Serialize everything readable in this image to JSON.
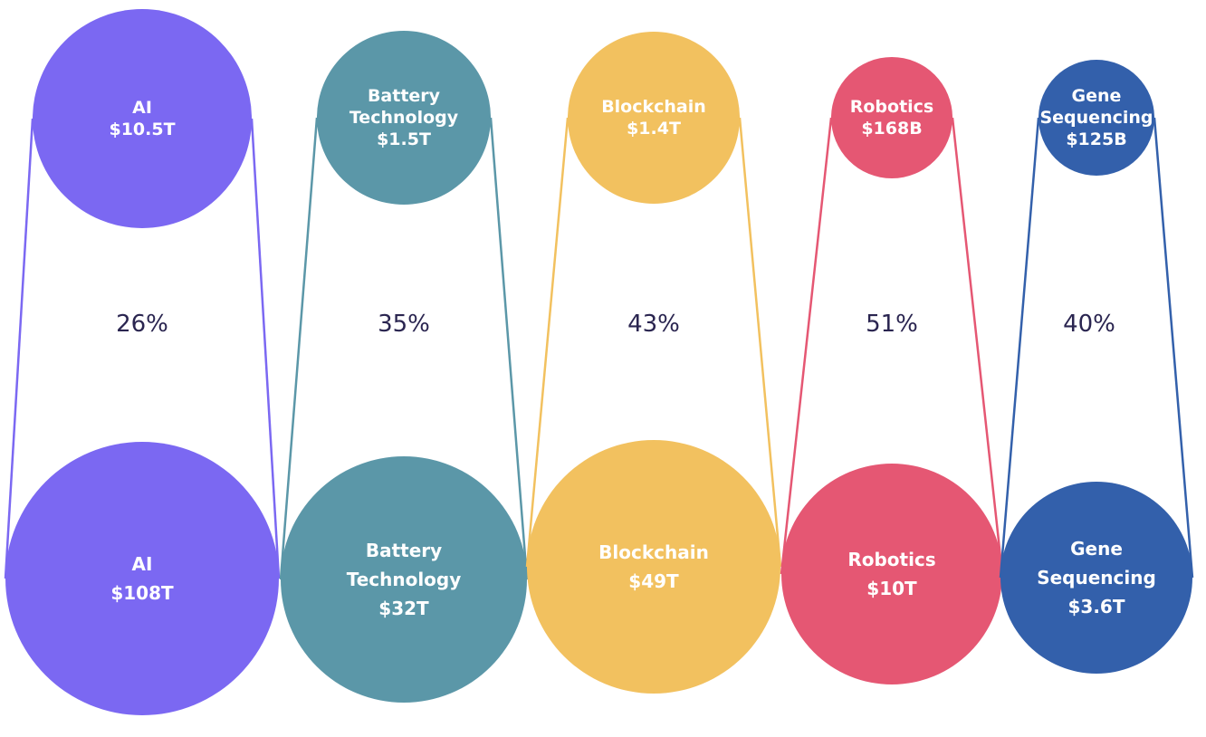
{
  "chart_data": {
    "type": "bubble-comparison",
    "title": "",
    "series": [
      {
        "name": "AI",
        "color": "#7b68f2",
        "small": {
          "label_lines": [
            "AI",
            "$10.5T"
          ],
          "value_usd": 10500000000000.0
        },
        "large": {
          "label_lines": [
            "AI",
            "$108T"
          ],
          "value_usd": 108000000000000.0
        },
        "growth": "26%"
      },
      {
        "name": "Battery Technology",
        "color": "#5b97a8",
        "small": {
          "label_lines": [
            "Battery",
            "Technology",
            "$1.5T"
          ],
          "value_usd": 1500000000000.0
        },
        "large": {
          "label_lines": [
            "Battery",
            "Technology",
            "$32T"
          ],
          "value_usd": 32000000000000.0
        },
        "growth": "35%"
      },
      {
        "name": "Blockchain",
        "color": "#f2c15f",
        "small": {
          "label_lines": [
            "Blockchain",
            "$1.4T"
          ],
          "value_usd": 1400000000000.0
        },
        "large": {
          "label_lines": [
            "Blockchain",
            "$49T"
          ],
          "value_usd": 49000000000000.0
        },
        "growth": "43%"
      },
      {
        "name": "Robotics",
        "color": "#e55773",
        "small": {
          "label_lines": [
            "Robotics",
            "$168B"
          ],
          "value_usd": 168000000000.0
        },
        "large": {
          "label_lines": [
            "Robotics",
            "$10T"
          ],
          "value_usd": 10000000000000.0
        },
        "growth": "51%"
      },
      {
        "name": "Gene Sequencing",
        "color": "#3360ab",
        "small": {
          "label_lines": [
            "Gene",
            "Sequencing",
            "$125B"
          ],
          "value_usd": 125000000000.0
        },
        "large": {
          "label_lines": [
            "Gene",
            "Sequencing",
            "$3.6T"
          ],
          "value_usd": 3600000000000.0
        },
        "growth": "40%"
      }
    ]
  }
}
